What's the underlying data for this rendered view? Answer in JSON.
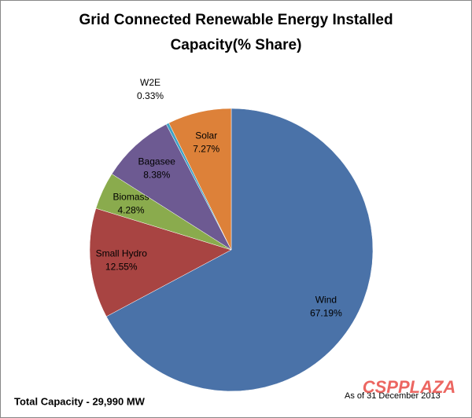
{
  "chart_data": {
    "type": "pie",
    "title": [
      "Grid Connected Renewable Energy Installed",
      "Capacity(% Share)"
    ],
    "categories": [
      "Wind",
      "Small Hydro",
      "Biomass",
      "Bagasee",
      "W2E",
      "Solar"
    ],
    "values": [
      67.19,
      12.55,
      4.28,
      8.38,
      0.33,
      7.27
    ],
    "value_labels": [
      "67.19%",
      "12.55%",
      "4.28%",
      "8.38%",
      "0.33%",
      "7.27%"
    ],
    "colors": [
      "#4a72a8",
      "#a84442",
      "#8aab4d",
      "#6d5a92",
      "#3fa3c6",
      "#dd8139"
    ],
    "annotations": [
      "Total Capacity - 29,990  MW",
      "As of 31 December 2013"
    ],
    "watermark": "CSPPLAZA"
  }
}
